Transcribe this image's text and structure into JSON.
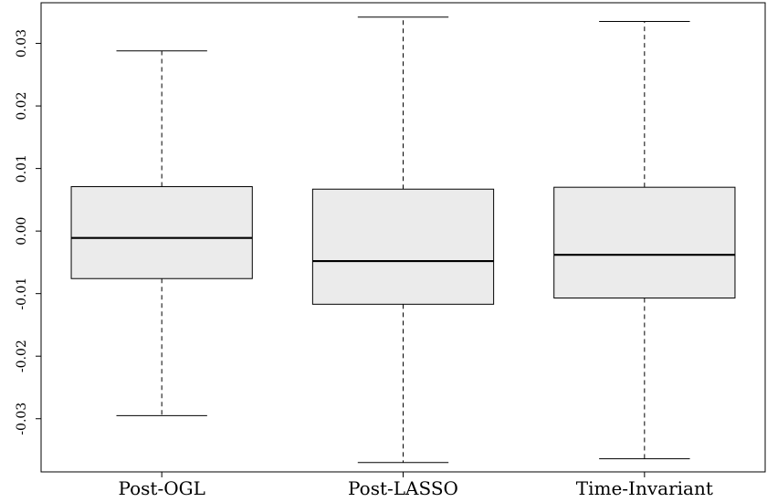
{
  "chart_data": {
    "type": "boxplot",
    "title": "",
    "xlabel": "",
    "ylabel": "",
    "ylim": [
      -0.0385,
      0.0365
    ],
    "y_ticks": [
      -0.03,
      -0.02,
      -0.01,
      0.0,
      0.01,
      0.02,
      0.03
    ],
    "y_tick_labels": [
      "-0.03",
      "-0.02",
      "-0.01",
      "0.00",
      "0.01",
      "0.02",
      "0.03"
    ],
    "grid": false,
    "categories": [
      "Post-OGL",
      "Post-LASSO",
      "Time-Invariant"
    ],
    "box_fill": "#ebebeb",
    "stroke": "#000000",
    "boxes": [
      {
        "category": "Post-OGL",
        "whisker_low": -0.0295,
        "q1": -0.0076,
        "median": -0.0011,
        "q3": 0.0071,
        "whisker_high": 0.0288
      },
      {
        "category": "Post-LASSO",
        "whisker_low": -0.037,
        "q1": -0.0117,
        "median": -0.0048,
        "q3": 0.0067,
        "whisker_high": 0.0342
      },
      {
        "category": "Time-Invariant",
        "whisker_low": -0.0364,
        "q1": -0.0107,
        "median": -0.0038,
        "q3": 0.007,
        "whisker_high": 0.0335
      }
    ]
  }
}
